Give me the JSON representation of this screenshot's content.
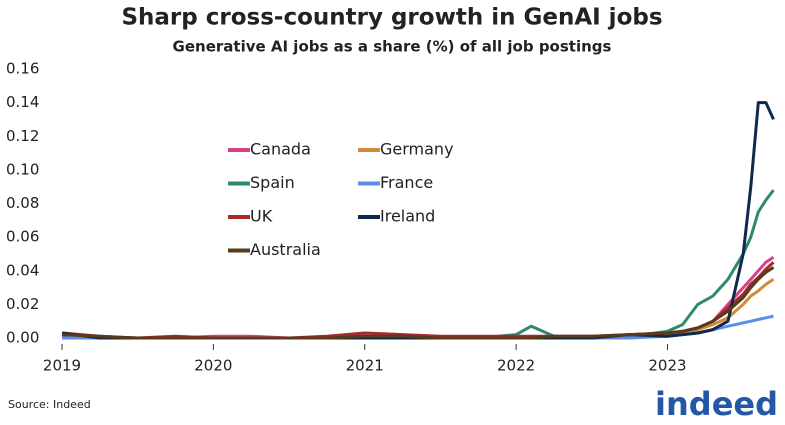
{
  "chart_data": {
    "type": "line",
    "title": "Sharp cross-country growth in GenAI jobs",
    "subtitle": "Generative AI jobs as a share (%) of all job postings",
    "source": "Source: Indeed",
    "logo": "indeed",
    "x": [
      2019,
      2019.25,
      2019.5,
      2019.75,
      2020,
      2020.25,
      2020.5,
      2020.75,
      2021,
      2021.25,
      2021.5,
      2021.75,
      2022,
      2022.1,
      2022.25,
      2022.5,
      2022.75,
      2023,
      2023.1,
      2023.2,
      2023.3,
      2023.4,
      2023.5,
      2023.55,
      2023.6,
      2023.65,
      2023.7
    ],
    "xlim": [
      2019,
      2023.73
    ],
    "xticks": [
      2019,
      2020,
      2021,
      2022,
      2023
    ],
    "ylim": [
      0,
      0.16
    ],
    "yticks": [
      {
        "value": 0,
        "label": "0.00"
      },
      {
        "value": 0.02,
        "label": "0.02"
      },
      {
        "value": 0.04,
        "label": "0.04"
      },
      {
        "value": 0.06,
        "label": "0.06"
      },
      {
        "value": 0.08,
        "label": "0.08"
      },
      {
        "value": 0.1,
        "label": "0.10"
      },
      {
        "value": 0.12,
        "label": "0.12"
      },
      {
        "value": 0.14,
        "label": "0.14"
      },
      {
        "value": 0.16,
        "label": "0.16"
      }
    ],
    "series": [
      {
        "name": "Canada",
        "color": "#d6418a",
        "values": [
          0.001,
          0,
          0,
          0,
          0.001,
          0.001,
          0,
          0,
          0.001,
          0,
          0,
          0,
          0,
          0,
          0.001,
          0,
          0,
          0.002,
          0.003,
          0.005,
          0.01,
          0.02,
          0.03,
          0.035,
          0.04,
          0.045,
          0.048
        ]
      },
      {
        "name": "Germany",
        "color": "#d08a3a",
        "values": [
          0,
          0,
          0,
          0,
          0,
          0,
          0,
          0,
          0.001,
          0,
          0,
          0,
          0,
          0,
          0,
          0,
          0.001,
          0.002,
          0.003,
          0.005,
          0.008,
          0.012,
          0.02,
          0.025,
          0.028,
          0.032,
          0.035
        ]
      },
      {
        "name": "Spain",
        "color": "#2e8a6a",
        "values": [
          0.002,
          0,
          0,
          0,
          0,
          0,
          0,
          0,
          0.001,
          0,
          0,
          0,
          0.002,
          0.007,
          0.001,
          0,
          0.001,
          0.004,
          0.008,
          0.02,
          0.025,
          0.035,
          0.05,
          0.06,
          0.075,
          0.082,
          0.088
        ]
      },
      {
        "name": "France",
        "color": "#5b8ee6",
        "values": [
          0,
          0,
          0,
          0,
          0,
          0,
          0,
          0,
          0,
          0,
          0,
          0,
          0,
          0,
          0,
          0,
          0,
          0.001,
          0.002,
          0.003,
          0.005,
          0.007,
          0.009,
          0.01,
          0.011,
          0.012,
          0.013
        ]
      },
      {
        "name": "UK",
        "color": "#a52a2a",
        "values": [
          0.003,
          0.001,
          0,
          0.001,
          0,
          0,
          0,
          0.001,
          0.003,
          0.002,
          0.001,
          0.001,
          0.001,
          0.001,
          0.001,
          0.001,
          0.002,
          0.003,
          0.004,
          0.006,
          0.01,
          0.018,
          0.026,
          0.032,
          0.036,
          0.041,
          0.045
        ]
      },
      {
        "name": "Ireland",
        "color": "#0f2a4a",
        "values": [
          0.003,
          0,
          0,
          0,
          0,
          0,
          0,
          0,
          0,
          0,
          0,
          0,
          0,
          0,
          0,
          0,
          0.002,
          0.001,
          0.002,
          0.003,
          0.005,
          0.01,
          0.05,
          0.09,
          0.14,
          0.14,
          0.13
        ]
      },
      {
        "name": "Australia",
        "color": "#5a3a1a",
        "values": [
          0.002,
          0.001,
          0,
          0,
          0,
          0,
          0,
          0,
          0.001,
          0.001,
          0,
          0,
          0,
          0,
          0.001,
          0.001,
          0.002,
          0.003,
          0.004,
          0.006,
          0.01,
          0.016,
          0.024,
          0.03,
          0.035,
          0.039,
          0.042
        ]
      }
    ]
  }
}
